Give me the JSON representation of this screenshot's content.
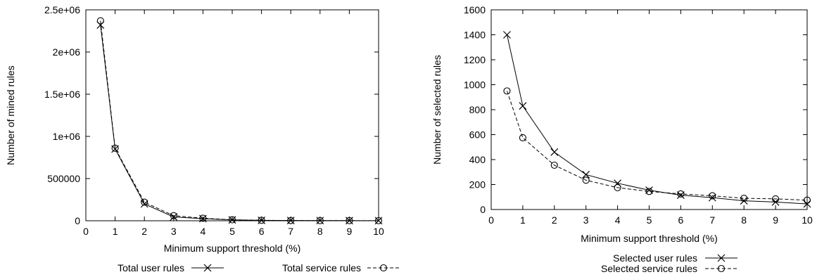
{
  "chart_data": [
    {
      "type": "line",
      "xlabel": "Minimum support threshold (%)",
      "ylabel": "Number of mined rules",
      "xlim": [
        0,
        10
      ],
      "ylim": [
        0,
        2500000
      ],
      "x_ticks": [
        0,
        1,
        2,
        3,
        4,
        5,
        6,
        7,
        8,
        9,
        10
      ],
      "y_ticks": [
        0,
        500000,
        1000000,
        1500000,
        2000000,
        2500000
      ],
      "y_tick_labels": [
        "0",
        "500000",
        "1e+06",
        "1.5e+06",
        "2e+06",
        "2.5e+06"
      ],
      "grid": false,
      "legend_placement": "below",
      "x": [
        0.5,
        1,
        2,
        3,
        4,
        5,
        6,
        7,
        8,
        9,
        10
      ],
      "series": [
        {
          "name": "Total user rules",
          "marker": "x",
          "dash": "solid",
          "values": [
            2320000,
            850000,
            200000,
            45000,
            25000,
            10000,
            5000,
            3000,
            2000,
            1500,
            1000
          ]
        },
        {
          "name": "Total service rules",
          "marker": "o",
          "dash": "dashed",
          "values": [
            2370000,
            860000,
            220000,
            60000,
            30000,
            12000,
            6000,
            3000,
            2000,
            1500,
            1000
          ]
        }
      ]
    },
    {
      "type": "line",
      "xlabel": "Minimum support threshold (%)",
      "ylabel": "Number of selected rules",
      "xlim": [
        0,
        10
      ],
      "ylim": [
        0,
        1600
      ],
      "x_ticks": [
        0,
        1,
        2,
        3,
        4,
        5,
        6,
        7,
        8,
        9,
        10
      ],
      "y_ticks": [
        0,
        200,
        400,
        600,
        800,
        1000,
        1200,
        1400,
        1600
      ],
      "y_tick_labels": [
        "0",
        "200",
        "400",
        "600",
        "800",
        "1000",
        "1200",
        "1400",
        "1600"
      ],
      "grid": false,
      "legend_placement": "below",
      "x": [
        0.5,
        1,
        2,
        3,
        4,
        5,
        6,
        7,
        8,
        9,
        10
      ],
      "series": [
        {
          "name": "Selected user rules",
          "marker": "x",
          "dash": "solid",
          "values": [
            1400,
            830,
            460,
            280,
            210,
            155,
            115,
            95,
            70,
            60,
            45
          ]
        },
        {
          "name": "Selected service rules",
          "marker": "o",
          "dash": "dashed",
          "values": [
            950,
            575,
            355,
            235,
            175,
            145,
            125,
            110,
            90,
            85,
            75
          ]
        }
      ]
    }
  ]
}
